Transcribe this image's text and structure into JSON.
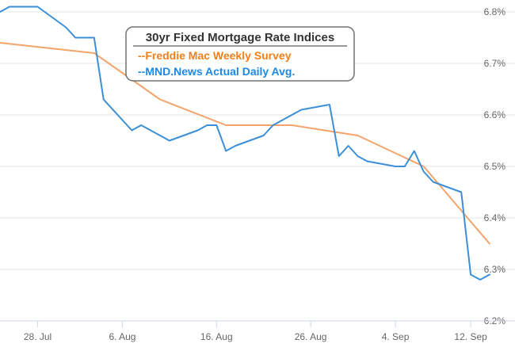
{
  "chart_data": {
    "type": "line",
    "title": "30yr Fixed Mortgage Rate Indices",
    "ylim": [
      6.2,
      6.8
    ],
    "yticks": [
      "6.2%",
      "6.3%",
      "6.4%",
      "6.5%",
      "6.6%",
      "6.7%",
      "6.8%"
    ],
    "ytick_values": [
      6.2,
      6.3,
      6.4,
      6.5,
      6.6,
      6.7,
      6.8
    ],
    "xlim": [
      "2023-07-24",
      "2023-09-13"
    ],
    "xticks": [
      {
        "date": "2023-07-28",
        "label": "28. Jul"
      },
      {
        "date": "2023-08-06",
        "label": "6. Aug"
      },
      {
        "date": "2023-08-16",
        "label": "16. Aug"
      },
      {
        "date": "2023-08-26",
        "label": "26. Aug"
      },
      {
        "date": "2023-09-04",
        "label": "4. Sep"
      },
      {
        "date": "2023-09-12",
        "label": "12. Sep"
      }
    ],
    "grid": true,
    "legend_position": "top-center",
    "series": [
      {
        "name": "--Freddie Mac Weekly Survey",
        "color": "#f4a46a",
        "legend_color": "#f57f17",
        "points": [
          [
            "2023-07-24",
            6.74
          ],
          [
            "2023-08-03",
            6.72
          ],
          [
            "2023-08-10",
            6.63
          ],
          [
            "2023-08-17",
            6.58
          ],
          [
            "2023-08-24",
            6.58
          ],
          [
            "2023-08-31",
            6.56
          ],
          [
            "2023-09-07",
            6.5
          ],
          [
            "2023-09-14",
            6.35
          ]
        ]
      },
      {
        "name": "--MND.News Actual Daily Avg.",
        "color": "#3b8fd8",
        "legend_color": "#1e88e5",
        "points": [
          [
            "2023-07-24",
            6.8
          ],
          [
            "2023-07-25",
            6.81
          ],
          [
            "2023-07-28",
            6.81
          ],
          [
            "2023-07-31",
            6.77
          ],
          [
            "2023-08-01",
            6.75
          ],
          [
            "2023-08-02",
            6.75
          ],
          [
            "2023-08-03",
            6.75
          ],
          [
            "2023-08-04",
            6.63
          ],
          [
            "2023-08-07",
            6.57
          ],
          [
            "2023-08-08",
            6.58
          ],
          [
            "2023-08-09",
            6.57
          ],
          [
            "2023-08-10",
            6.56
          ],
          [
            "2023-08-11",
            6.55
          ],
          [
            "2023-08-14",
            6.57
          ],
          [
            "2023-08-15",
            6.58
          ],
          [
            "2023-08-16",
            6.58
          ],
          [
            "2023-08-17",
            6.53
          ],
          [
            "2023-08-18",
            6.54
          ],
          [
            "2023-08-21",
            6.56
          ],
          [
            "2023-08-22",
            6.58
          ],
          [
            "2023-08-23",
            6.59
          ],
          [
            "2023-08-24",
            6.6
          ],
          [
            "2023-08-25",
            6.61
          ],
          [
            "2023-08-28",
            6.62
          ],
          [
            "2023-08-29",
            6.52
          ],
          [
            "2023-08-30",
            6.54
          ],
          [
            "2023-08-31",
            6.52
          ],
          [
            "2023-09-01",
            6.51
          ],
          [
            "2023-09-04",
            6.5
          ],
          [
            "2023-09-05",
            6.5
          ],
          [
            "2023-09-06",
            6.53
          ],
          [
            "2023-09-07",
            6.49
          ],
          [
            "2023-09-08",
            6.47
          ],
          [
            "2023-09-11",
            6.45
          ],
          [
            "2023-09-12",
            6.29
          ],
          [
            "2023-09-13",
            6.28
          ],
          [
            "2023-09-14",
            6.29
          ]
        ]
      }
    ]
  }
}
